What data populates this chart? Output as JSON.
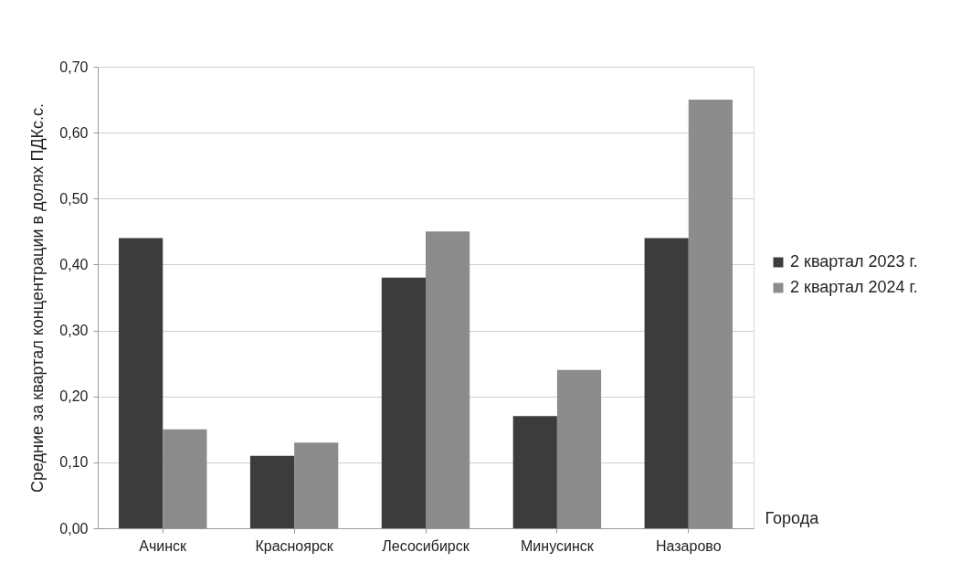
{
  "chart_data": {
    "type": "bar",
    "xlabel": "Города",
    "ylabel": "Средние за квартал концентрации в долях ПДКс.с.",
    "categories": [
      "Ачинск",
      "Красноярск",
      "Лесосибирск",
      "Минусинск",
      "Назарово"
    ],
    "series": [
      {
        "name": "2 квартал 2023 г.",
        "color": "#3c3c3c",
        "values": [
          0.44,
          0.11,
          0.38,
          0.17,
          0.44
        ]
      },
      {
        "name": "2 квартал 2024 г.",
        "color": "#8c8c8c",
        "values": [
          0.15,
          0.13,
          0.45,
          0.24,
          0.65
        ]
      }
    ],
    "ylim": [
      0,
      0.7
    ],
    "yticks": [
      {
        "value": 0,
        "label": "0,00"
      },
      {
        "value": 0.1,
        "label": "0,10"
      },
      {
        "value": 0.2,
        "label": "0,20"
      },
      {
        "value": 0.3,
        "label": "0,30"
      },
      {
        "value": 0.4,
        "label": "0,40"
      },
      {
        "value": 0.5,
        "label": "0,50"
      },
      {
        "value": 0.6,
        "label": "0,60"
      },
      {
        "value": 0.7,
        "label": "0,70"
      }
    ],
    "grid": "y",
    "legend": "right"
  }
}
